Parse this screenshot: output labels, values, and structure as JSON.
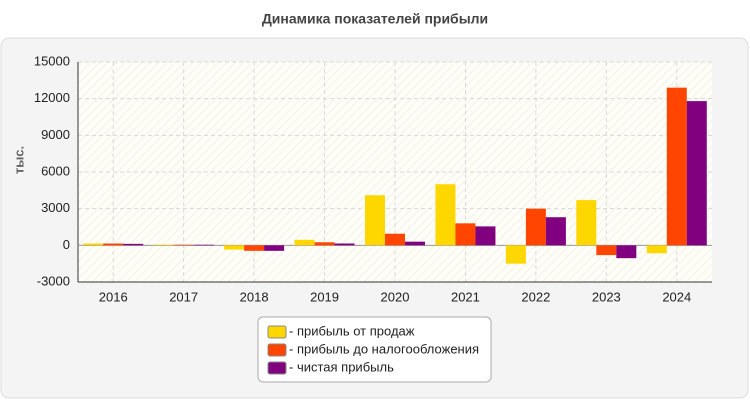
{
  "chart_data": {
    "type": "bar",
    "title": "Динамика показателей прибыли",
    "y_label": "тыс.",
    "categories": [
      "2016",
      "2017",
      "2018",
      "2019",
      "2020",
      "2021",
      "2022",
      "2023",
      "2024"
    ],
    "series": [
      {
        "name": "- прибыль от продаж",
        "color": "#ffd700",
        "values": [
          150,
          50,
          -350,
          450,
          4100,
          5000,
          -1500,
          3700,
          -650
        ]
      },
      {
        "name": "- прибыль до налогообложения",
        "color": "#ff4500",
        "values": [
          150,
          50,
          -450,
          250,
          950,
          1800,
          3000,
          -800,
          12900
        ]
      },
      {
        "name": "- чистая прибыль",
        "color": "#800080",
        "values": [
          120,
          50,
          -450,
          150,
          300,
          1550,
          2300,
          -1050,
          11800
        ]
      }
    ],
    "ylim": [
      -3000,
      15000
    ],
    "yticks": [
      -3000,
      0,
      3000,
      6000,
      9000,
      12000,
      15000
    ],
    "grid": true
  }
}
